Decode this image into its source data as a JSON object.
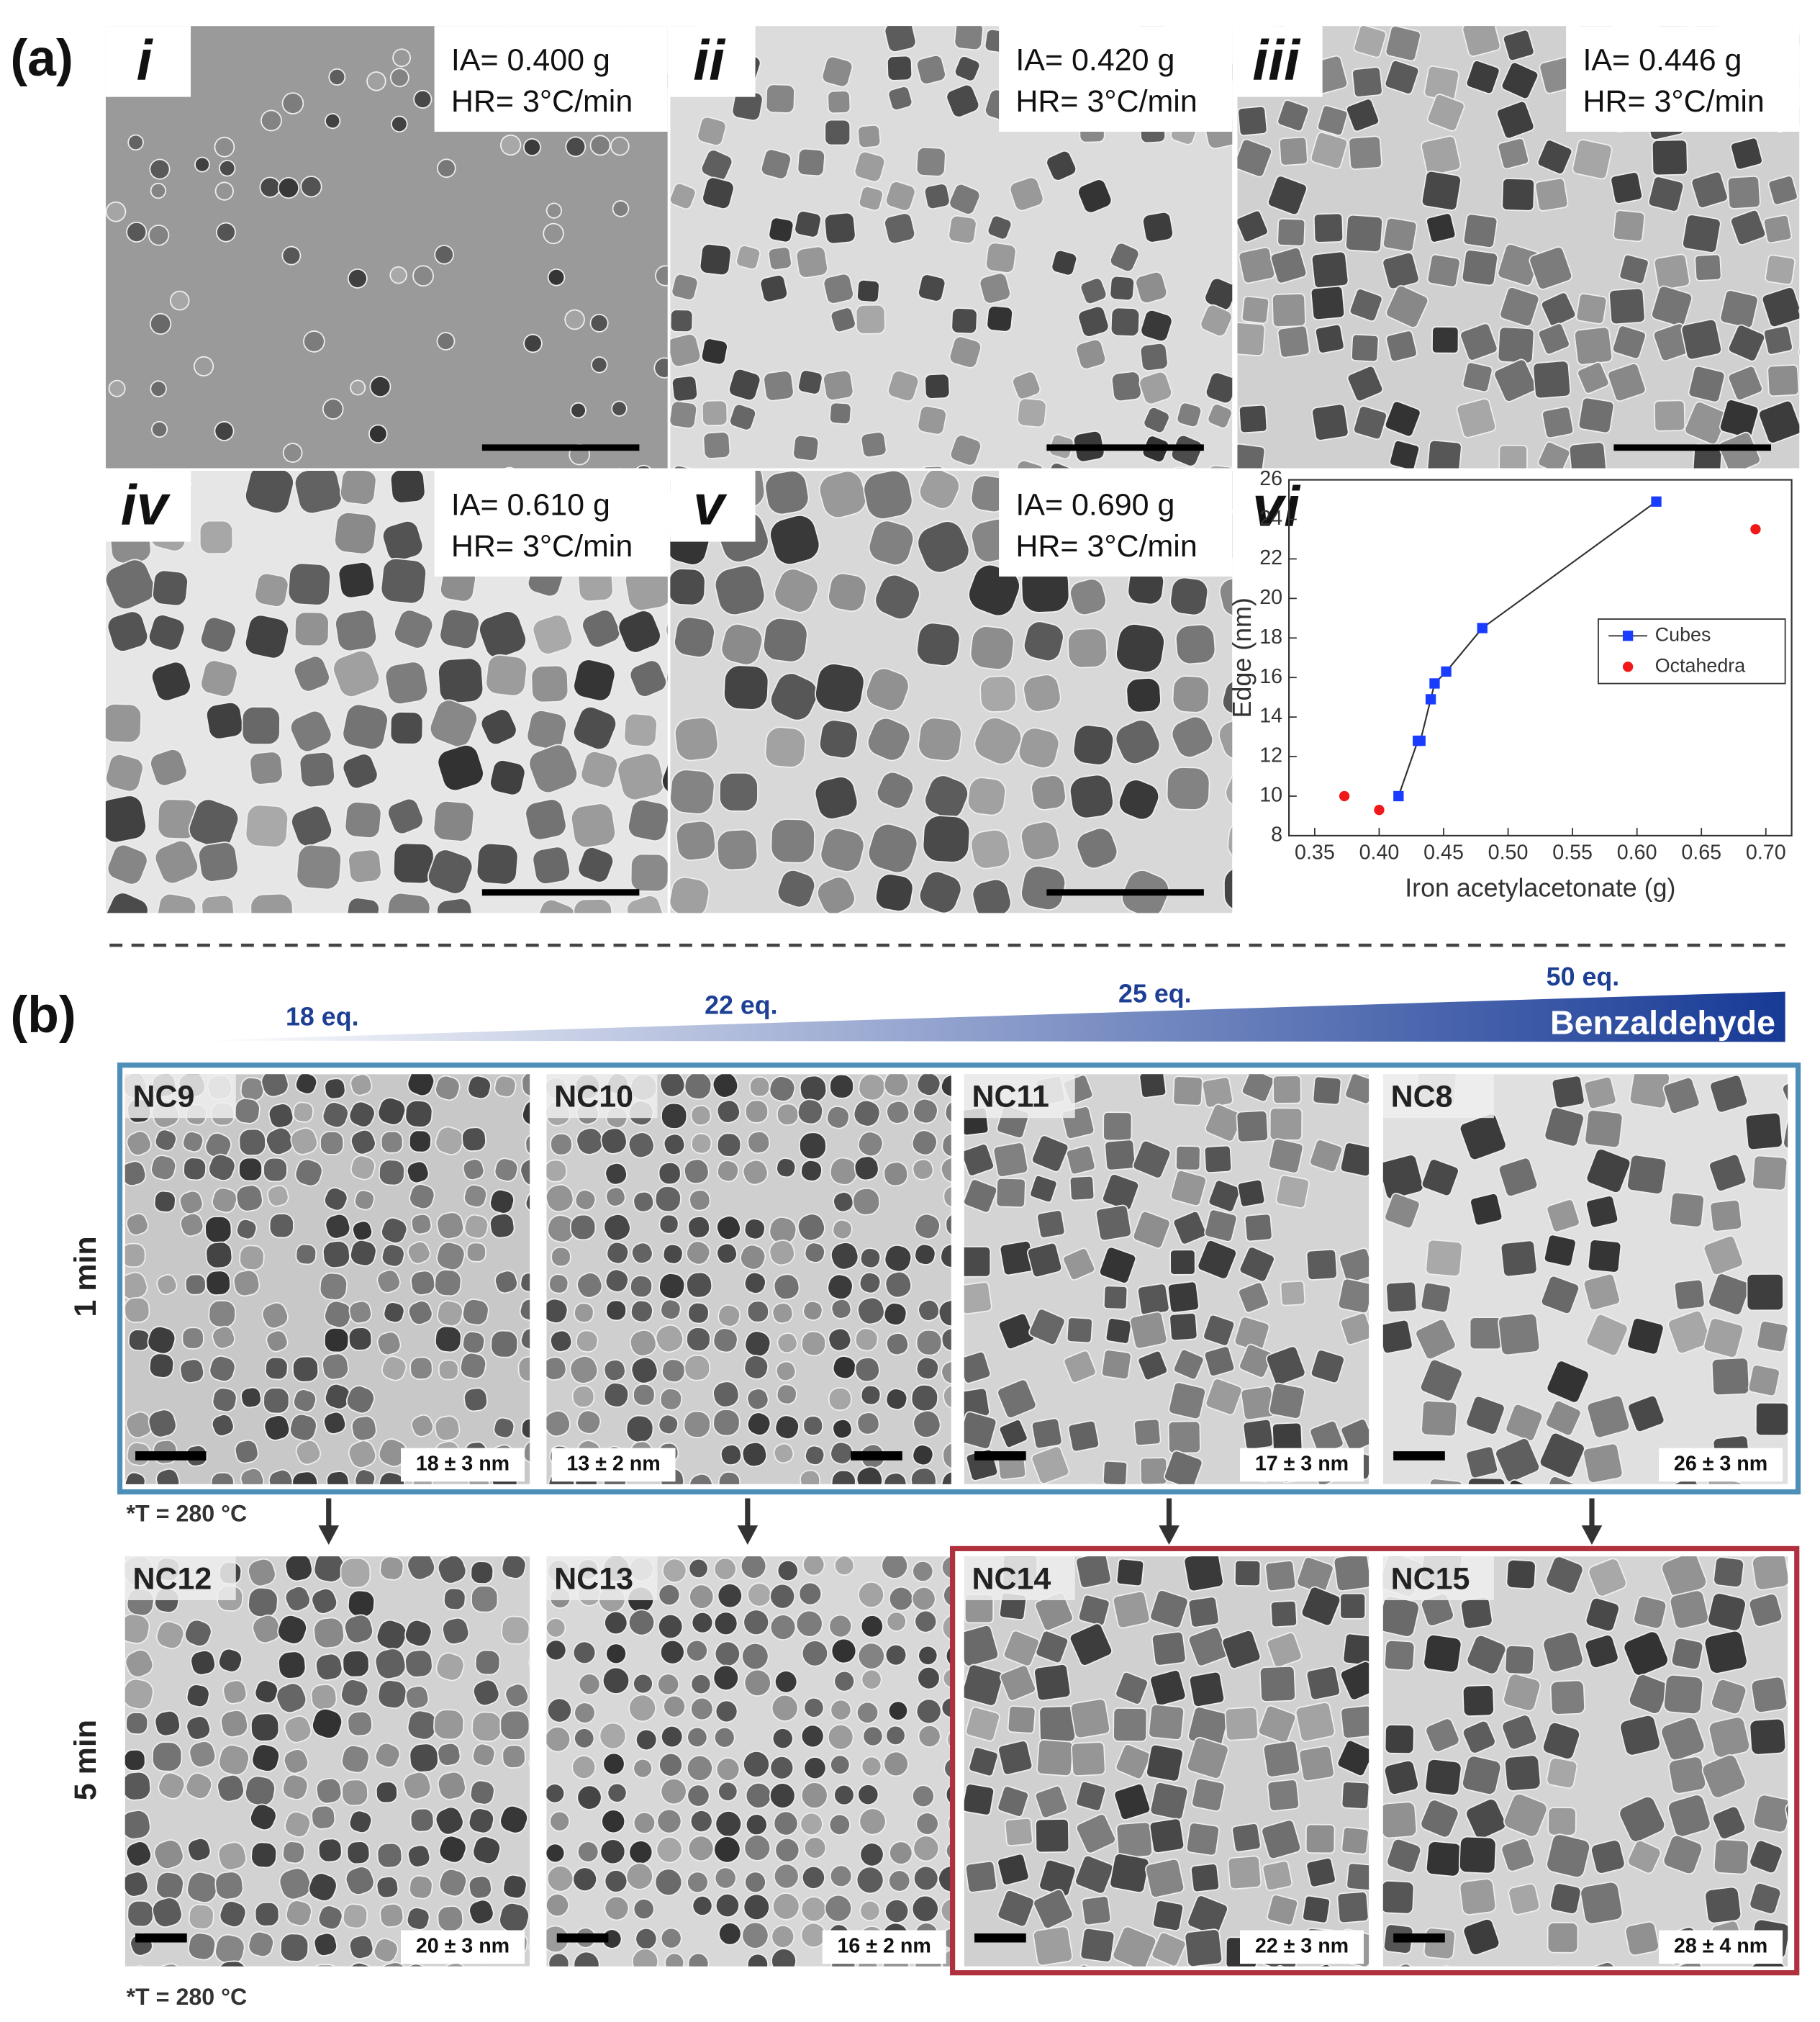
{
  "panel_a": {
    "label": "(a)",
    "images": [
      {
        "numeral": "i",
        "ia": "IA= 0.400 g",
        "hr": "HR= 3°C/min"
      },
      {
        "numeral": "ii",
        "ia": "IA= 0.420 g",
        "hr": "HR= 3°C/min"
      },
      {
        "numeral": "iii",
        "ia": "IA= 0.446 g",
        "hr": "HR= 3°C/min"
      },
      {
        "numeral": "iv",
        "ia": "IA= 0.610 g",
        "hr": "HR= 3°C/min"
      },
      {
        "numeral": "v",
        "ia": "IA= 0.690 g",
        "hr": "HR= 3°C/min"
      }
    ]
  },
  "chart_data": {
    "type": "scatter",
    "numeral": "vi",
    "x_label": "Iron acetylacetonate (g)",
    "y_label": "Edge (nm)",
    "xlim": [
      0.33,
      0.72
    ],
    "ylim": [
      8,
      26
    ],
    "xticks": [
      0.35,
      {
        "value": 0.4,
        "label": "0.40"
      },
      0.45,
      {
        "value": 0.5,
        "label": "0.50"
      },
      0.55,
      {
        "value": 0.6,
        "label": "0.60"
      },
      0.65,
      {
        "value": 0.7,
        "label": "0.70"
      }
    ],
    "yticks": [
      8,
      10,
      12,
      14,
      16,
      18,
      20,
      22,
      24,
      26
    ],
    "legend": "right",
    "series": [
      {
        "name": "Cubes",
        "color": "#1a3cff",
        "marker": "square",
        "line": true,
        "x": [
          0.415,
          0.43,
          0.432,
          0.44,
          0.443,
          0.452,
          0.48,
          0.615
        ],
        "values": [
          10.0,
          12.8,
          12.8,
          14.9,
          15.7,
          16.3,
          18.5,
          24.9
        ]
      },
      {
        "name": "Octahedra",
        "color": "#f01818",
        "marker": "circle",
        "line": false,
        "x": [
          0.373,
          0.4,
          0.692
        ],
        "values": [
          10.0,
          9.3,
          23.5
        ]
      }
    ]
  },
  "panel_b": {
    "label": "(b)",
    "gradient": {
      "labels": [
        "18 eq.",
        "22 eq.",
        "25 eq.",
        "50 eq."
      ],
      "title": "Benzaldehyde"
    },
    "rows": [
      {
        "time": "1 min",
        "note": "*T = 280 °C",
        "images": [
          {
            "name": "NC9",
            "size": "18 ± 3 nm"
          },
          {
            "name": "NC10",
            "size": "13 ± 2 nm"
          },
          {
            "name": "NC11",
            "size": "17 ± 3 nm"
          },
          {
            "name": "NC8",
            "size": "26 ± 3 nm"
          }
        ]
      },
      {
        "time": "5 min",
        "note": "*T = 280 °C",
        "images": [
          {
            "name": "NC12",
            "size": "20 ± 3 nm"
          },
          {
            "name": "NC13",
            "size": "16 ± 2 nm"
          },
          {
            "name": "NC14",
            "size": "22 ± 3 nm"
          },
          {
            "name": "NC15",
            "size": "28 ± 4 nm"
          }
        ]
      }
    ]
  }
}
